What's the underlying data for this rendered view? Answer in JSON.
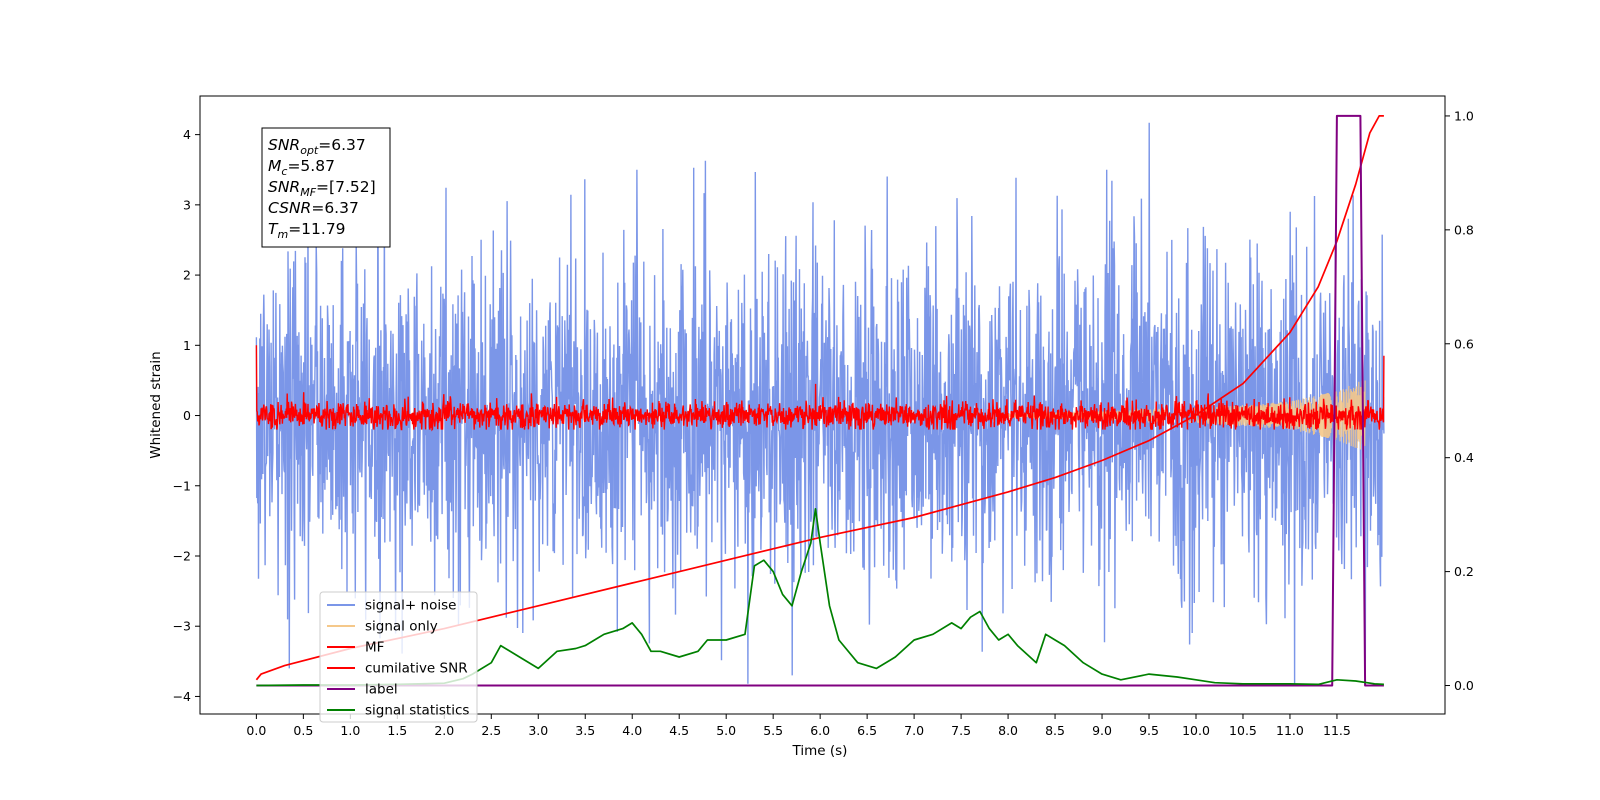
{
  "chart_data": {
    "type": "line",
    "xlabel": "Time (s)",
    "ylabel": "Whitened strain",
    "xlim": [
      -0.6,
      12.65
    ],
    "ylim": [
      -4.25,
      4.55
    ],
    "y2lim": [
      -0.05,
      1.035
    ],
    "xticks": [
      0.0,
      0.5,
      1.0,
      1.5,
      2.0,
      2.5,
      3.0,
      3.5,
      4.0,
      4.5,
      5.0,
      5.5,
      6.0,
      6.5,
      7.0,
      7.5,
      8.0,
      8.5,
      9.0,
      9.5,
      10.0,
      10.5,
      11.0,
      11.5
    ],
    "xtick_labels": [
      "0.0",
      "0.5",
      "1.0",
      "1.5",
      "2.0",
      "2.5",
      "3.0",
      "3.5",
      "4.0",
      "4.5",
      "5.0",
      "5.5",
      "6.0",
      "6.5",
      "7.0",
      "7.5",
      "8.0",
      "8.5",
      "9.0",
      "9.5",
      "10.0",
      "10.5",
      "11.0",
      "11.5"
    ],
    "yticks": [
      -4,
      -3,
      -2,
      -1,
      0,
      1,
      2,
      3,
      4
    ],
    "ytick_labels": [
      "−4",
      "−3",
      "−2",
      "−1",
      "0",
      "1",
      "2",
      "3",
      "4"
    ],
    "y2ticks": [
      0.0,
      0.2,
      0.4,
      0.6,
      0.8,
      1.0
    ],
    "y2tick_labels": [
      "0.0",
      "0.2",
      "0.4",
      "0.6",
      "0.8",
      "1.0"
    ],
    "grid": false,
    "legend_position": "lower-left",
    "annotation": [
      {
        "sym": "SNR",
        "sub": "opt",
        "value": "=6.37"
      },
      {
        "sym": "M",
        "sub": "c",
        "value": "=5.87"
      },
      {
        "sym": "SNR",
        "sub": "MF",
        "value": "=[7.52]"
      },
      {
        "sym": "CSNR",
        "sub": "",
        "value": "=6.37"
      },
      {
        "sym": "T",
        "sub": "m",
        "value": "=11.79"
      }
    ],
    "series": [
      {
        "name": "signal+ noise",
        "axis": "left",
        "color": "#7b96e8",
        "kind": "noise",
        "x_range": [
          0.0,
          12.0
        ],
        "amplitude": 1.2,
        "max": 4.17,
        "min": -3.82,
        "peaks": [
          [
            0.35,
            -3.6
          ],
          [
            5.7,
            -3.7
          ],
          [
            9.5,
            4.17
          ],
          [
            11.05,
            -3.82
          ],
          [
            11.8,
            -3.7
          ],
          [
            4.05,
            3.5
          ]
        ]
      },
      {
        "name": "signal only",
        "axis": "left",
        "color": "#f5c88a",
        "kind": "chirp",
        "x_range": [
          8.0,
          11.8
        ],
        "envelope": [
          [
            8.0,
            0.03
          ],
          [
            10.0,
            0.1
          ],
          [
            11.0,
            0.2
          ],
          [
            11.5,
            0.35
          ],
          [
            11.8,
            0.52
          ]
        ]
      },
      {
        "name": "MF",
        "axis": "left",
        "color": "#ff0000",
        "kind": "noise",
        "x_range": [
          0.0,
          12.0
        ],
        "amplitude": 0.1,
        "points": [
          [
            0.0,
            1.0
          ],
          [
            0.02,
            0.0
          ],
          [
            5.95,
            0.45
          ],
          [
            11.98,
            0.0
          ],
          [
            12.0,
            0.85
          ]
        ]
      },
      {
        "name": "cumilative SNR",
        "axis": "right",
        "color": "#ff0000",
        "x": [
          0.0,
          0.05,
          0.3,
          1.0,
          2.0,
          3.0,
          4.0,
          5.0,
          6.0,
          7.0,
          8.0,
          8.5,
          9.0,
          9.5,
          10.0,
          10.5,
          11.0,
          11.3,
          11.5,
          11.7,
          11.85,
          11.95,
          12.0
        ],
        "y": [
          0.01,
          0.02,
          0.035,
          0.065,
          0.1,
          0.14,
          0.18,
          0.22,
          0.26,
          0.295,
          0.34,
          0.365,
          0.395,
          0.43,
          0.475,
          0.53,
          0.62,
          0.7,
          0.78,
          0.88,
          0.97,
          1.0,
          1.0
        ]
      },
      {
        "name": "label",
        "axis": "right",
        "color": "#800080",
        "x": [
          0.0,
          11.45,
          11.5,
          11.75,
          11.8,
          11.85,
          12.0
        ],
        "y": [
          0.0,
          0.0,
          1.0,
          1.0,
          0.0,
          0.0,
          0.0
        ]
      },
      {
        "name": "signal statistics",
        "axis": "right",
        "color": "#008000",
        "x": [
          0.0,
          0.5,
          1.0,
          1.5,
          2.0,
          2.2,
          2.3,
          2.5,
          2.6,
          2.8,
          3.0,
          3.2,
          3.4,
          3.5,
          3.7,
          3.9,
          4.0,
          4.1,
          4.2,
          4.3,
          4.5,
          4.7,
          4.8,
          5.0,
          5.2,
          5.3,
          5.4,
          5.5,
          5.6,
          5.7,
          5.8,
          5.9,
          5.95,
          6.0,
          6.1,
          6.2,
          6.4,
          6.6,
          6.8,
          7.0,
          7.2,
          7.4,
          7.5,
          7.6,
          7.7,
          7.8,
          7.9,
          8.0,
          8.1,
          8.3,
          8.4,
          8.5,
          8.6,
          8.8,
          9.0,
          9.2,
          9.5,
          9.8,
          10.0,
          10.2,
          10.5,
          11.0,
          11.3,
          11.5,
          11.7,
          11.9,
          12.0
        ],
        "y": [
          0.0,
          0.001,
          0.001,
          0.002,
          0.004,
          0.012,
          0.02,
          0.04,
          0.07,
          0.05,
          0.03,
          0.06,
          0.065,
          0.07,
          0.09,
          0.1,
          0.11,
          0.09,
          0.06,
          0.06,
          0.05,
          0.06,
          0.08,
          0.08,
          0.09,
          0.21,
          0.22,
          0.2,
          0.16,
          0.14,
          0.2,
          0.25,
          0.31,
          0.25,
          0.14,
          0.08,
          0.04,
          0.03,
          0.05,
          0.08,
          0.09,
          0.11,
          0.1,
          0.12,
          0.13,
          0.1,
          0.08,
          0.09,
          0.07,
          0.04,
          0.09,
          0.08,
          0.07,
          0.04,
          0.02,
          0.01,
          0.02,
          0.015,
          0.01,
          0.005,
          0.003,
          0.003,
          0.002,
          0.01,
          0.008,
          0.003,
          0.002
        ]
      }
    ]
  }
}
